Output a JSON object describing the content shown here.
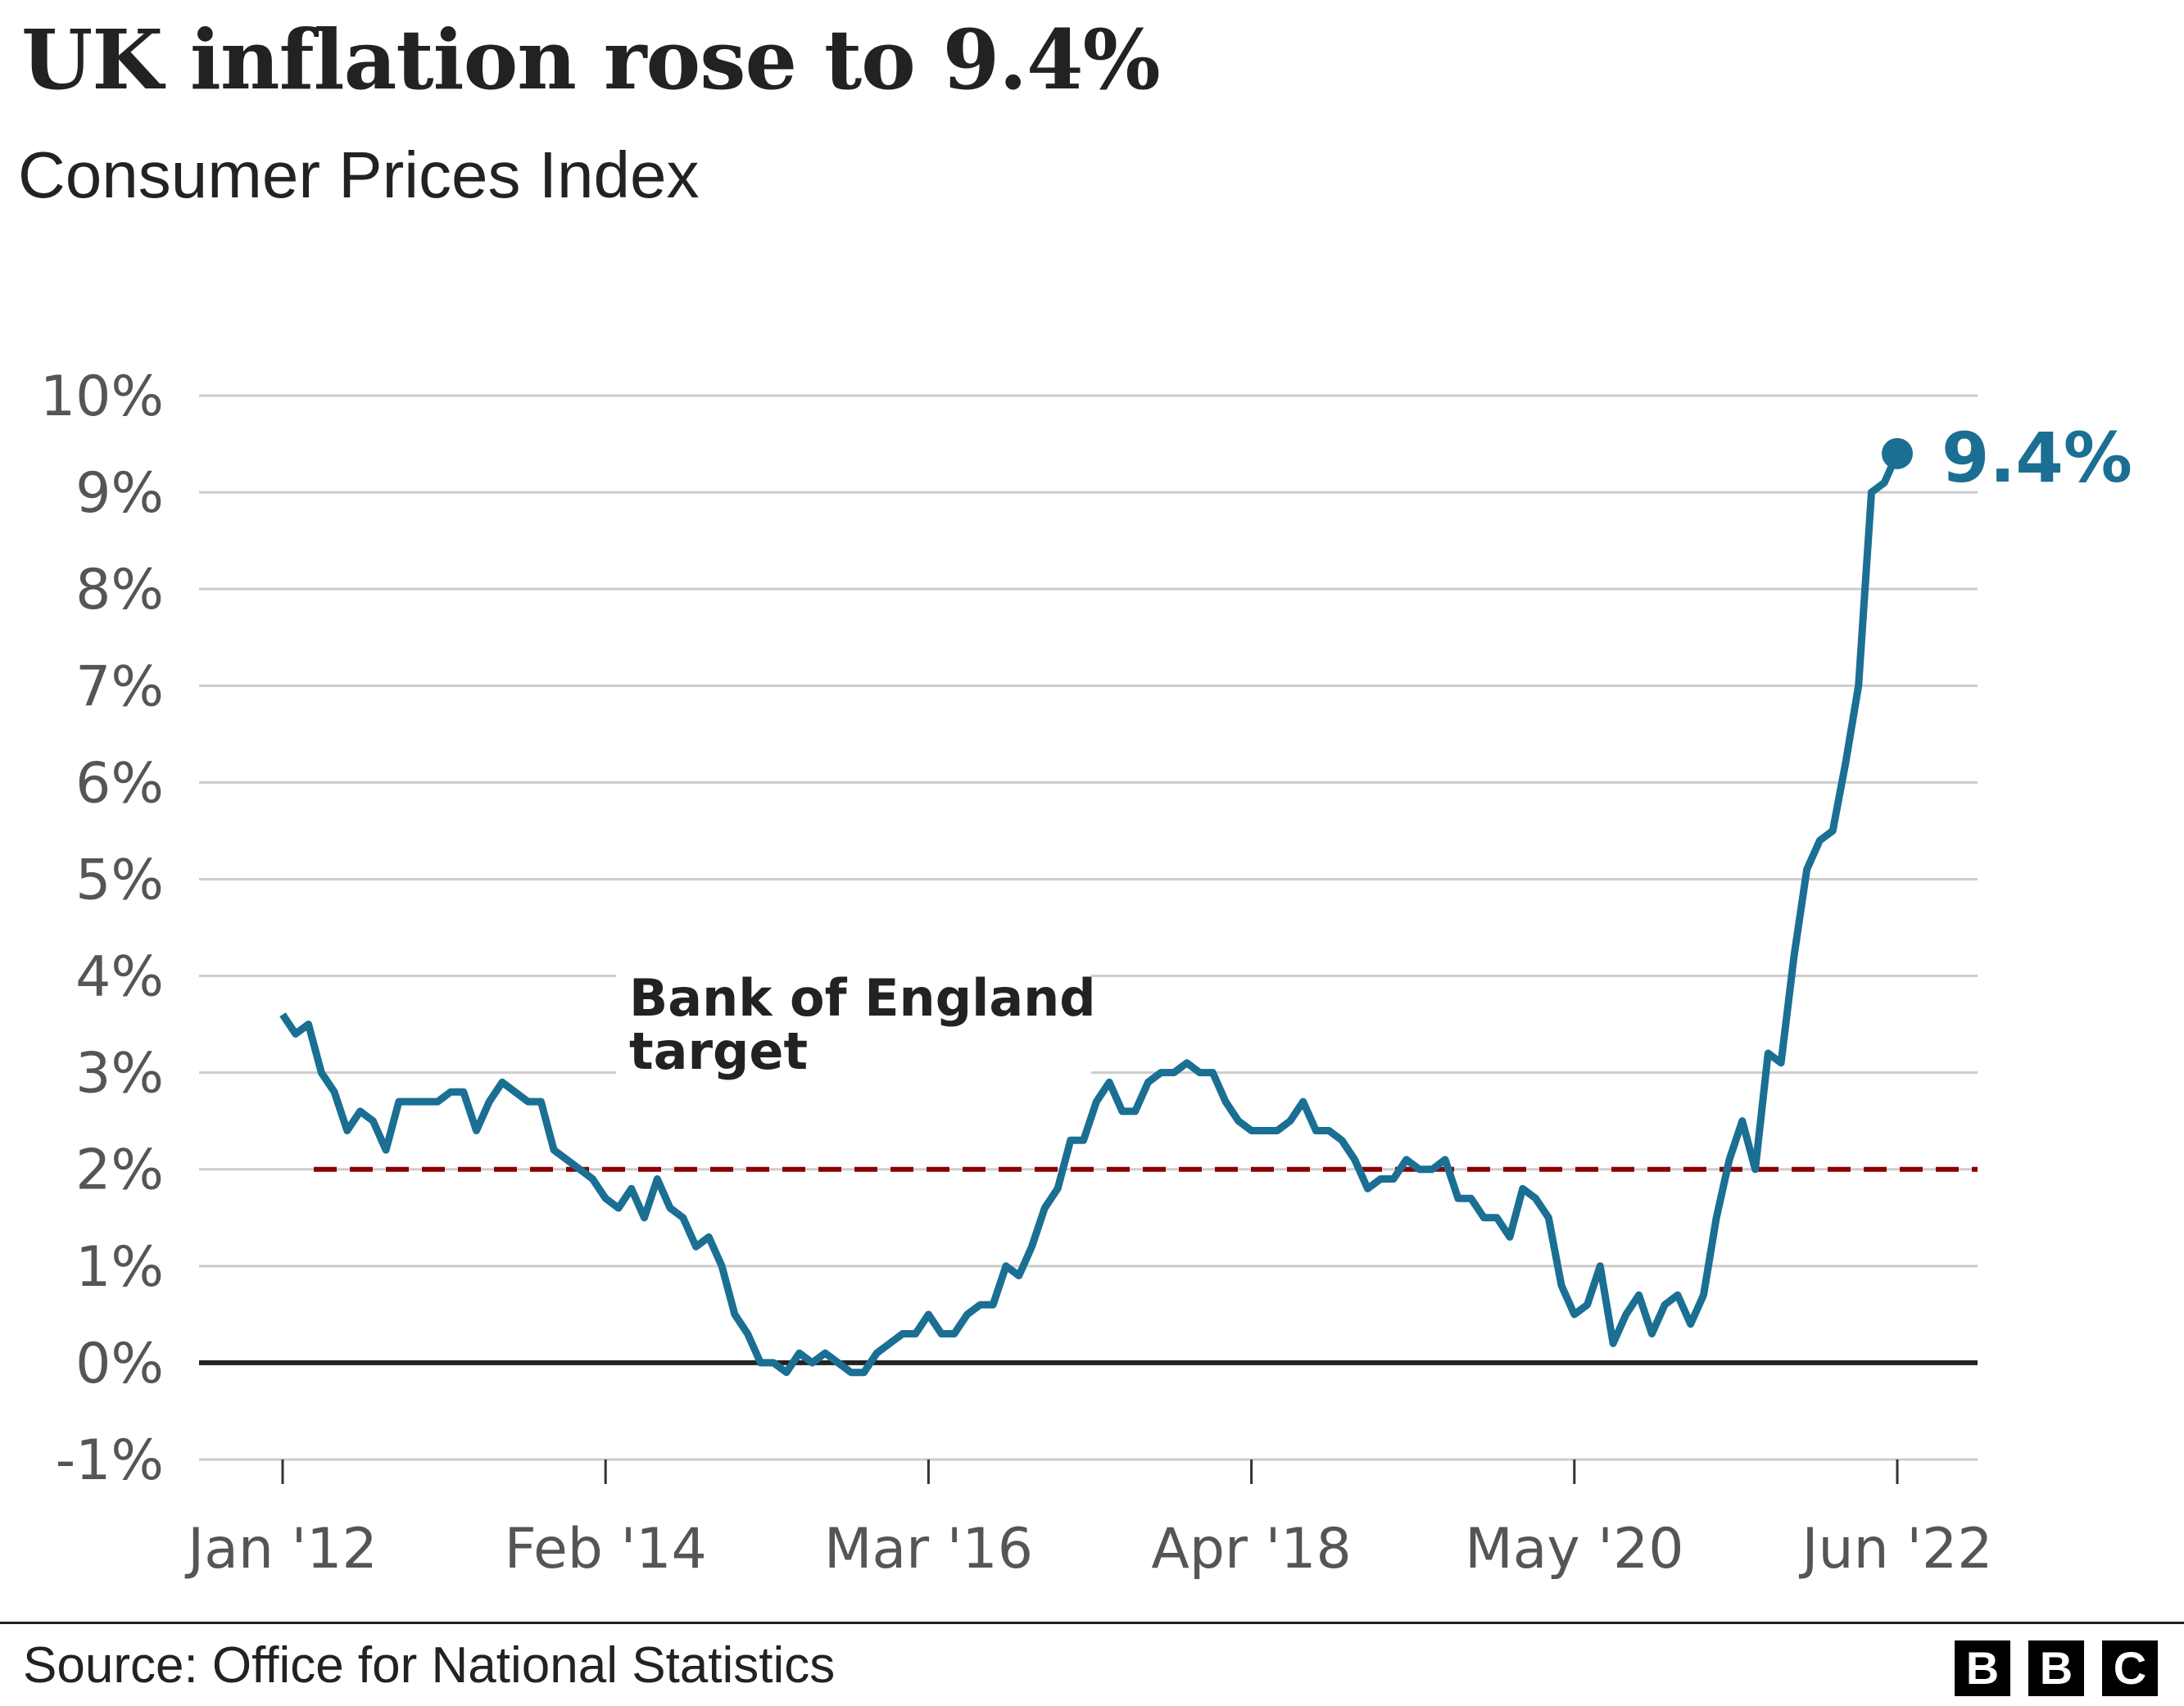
{
  "title": "UK inflation rose to 9.4%",
  "subtitle": "Consumer Prices Index",
  "source": "Source: Office for National Statistics",
  "logo": {
    "letters": [
      "B",
      "B",
      "C"
    ]
  },
  "colors": {
    "line": "#1a6f93",
    "target": "#8b0000",
    "grid": "#cccccc",
    "zero": "#222222"
  },
  "chart_data": {
    "type": "line",
    "title": "UK inflation rose to 9.4%",
    "subtitle": "Consumer Prices Index",
    "xlabel": "",
    "ylabel": "",
    "ylim": [
      -1,
      10
    ],
    "yticks": [
      -1,
      0,
      1,
      2,
      3,
      4,
      5,
      6,
      7,
      8,
      9,
      10
    ],
    "ytick_labels": [
      "-1%",
      "0%",
      "1%",
      "2%",
      "3%",
      "4%",
      "5%",
      "6%",
      "7%",
      "8%",
      "9%",
      "10%"
    ],
    "xtick_labels": [
      "Jan '12",
      "Feb '14",
      "Mar '16",
      "Apr '18",
      "May '20",
      "Jun '22"
    ],
    "xtick_months": [
      "2012-01",
      "2014-02",
      "2016-03",
      "2018-04",
      "2020-05",
      "2022-06"
    ],
    "x_start": "2012-01",
    "x_end": "2022-06",
    "grid": "horizontal",
    "target": {
      "value": 2,
      "label_line1": "Bank of England",
      "label_line2": "target",
      "style": "dashed"
    },
    "end_label": "9.4%",
    "series": [
      {
        "values": [
          3.6,
          3.4,
          3.5,
          3.0,
          2.8,
          2.4,
          2.6,
          2.5,
          2.2,
          2.7,
          2.7,
          2.7,
          2.7,
          2.8,
          2.8,
          2.4,
          2.7,
          2.9,
          2.8,
          2.7,
          2.7,
          2.2,
          2.1,
          2.0,
          1.9,
          1.7,
          1.6,
          1.8,
          1.5,
          1.9,
          1.6,
          1.5,
          1.2,
          1.3,
          1.0,
          0.5,
          0.3,
          0.0,
          0.0,
          -0.1,
          0.1,
          0.0,
          0.1,
          0.0,
          -0.1,
          -0.1,
          0.1,
          0.2,
          0.3,
          0.3,
          0.5,
          0.3,
          0.3,
          0.5,
          0.6,
          0.6,
          1.0,
          0.9,
          1.2,
          1.6,
          1.8,
          2.3,
          2.3,
          2.7,
          2.9,
          2.6,
          2.6,
          2.9,
          3.0,
          3.0,
          3.1,
          3.0,
          3.0,
          2.7,
          2.5,
          2.4,
          2.4,
          2.4,
          2.5,
          2.7,
          2.4,
          2.4,
          2.3,
          2.1,
          1.8,
          1.9,
          1.9,
          2.1,
          2.0,
          2.0,
          2.1,
          1.7,
          1.7,
          1.5,
          1.5,
          1.3,
          1.8,
          1.7,
          1.5,
          0.8,
          0.5,
          0.6,
          1.0,
          0.2,
          0.5,
          0.7,
          0.3,
          0.6,
          0.7,
          0.4,
          0.7,
          1.5,
          2.1,
          2.5,
          2.0,
          3.2,
          3.1,
          4.2,
          5.1,
          5.4,
          5.5,
          6.2,
          7.0,
          9.0,
          9.1,
          9.4
        ]
      }
    ]
  }
}
